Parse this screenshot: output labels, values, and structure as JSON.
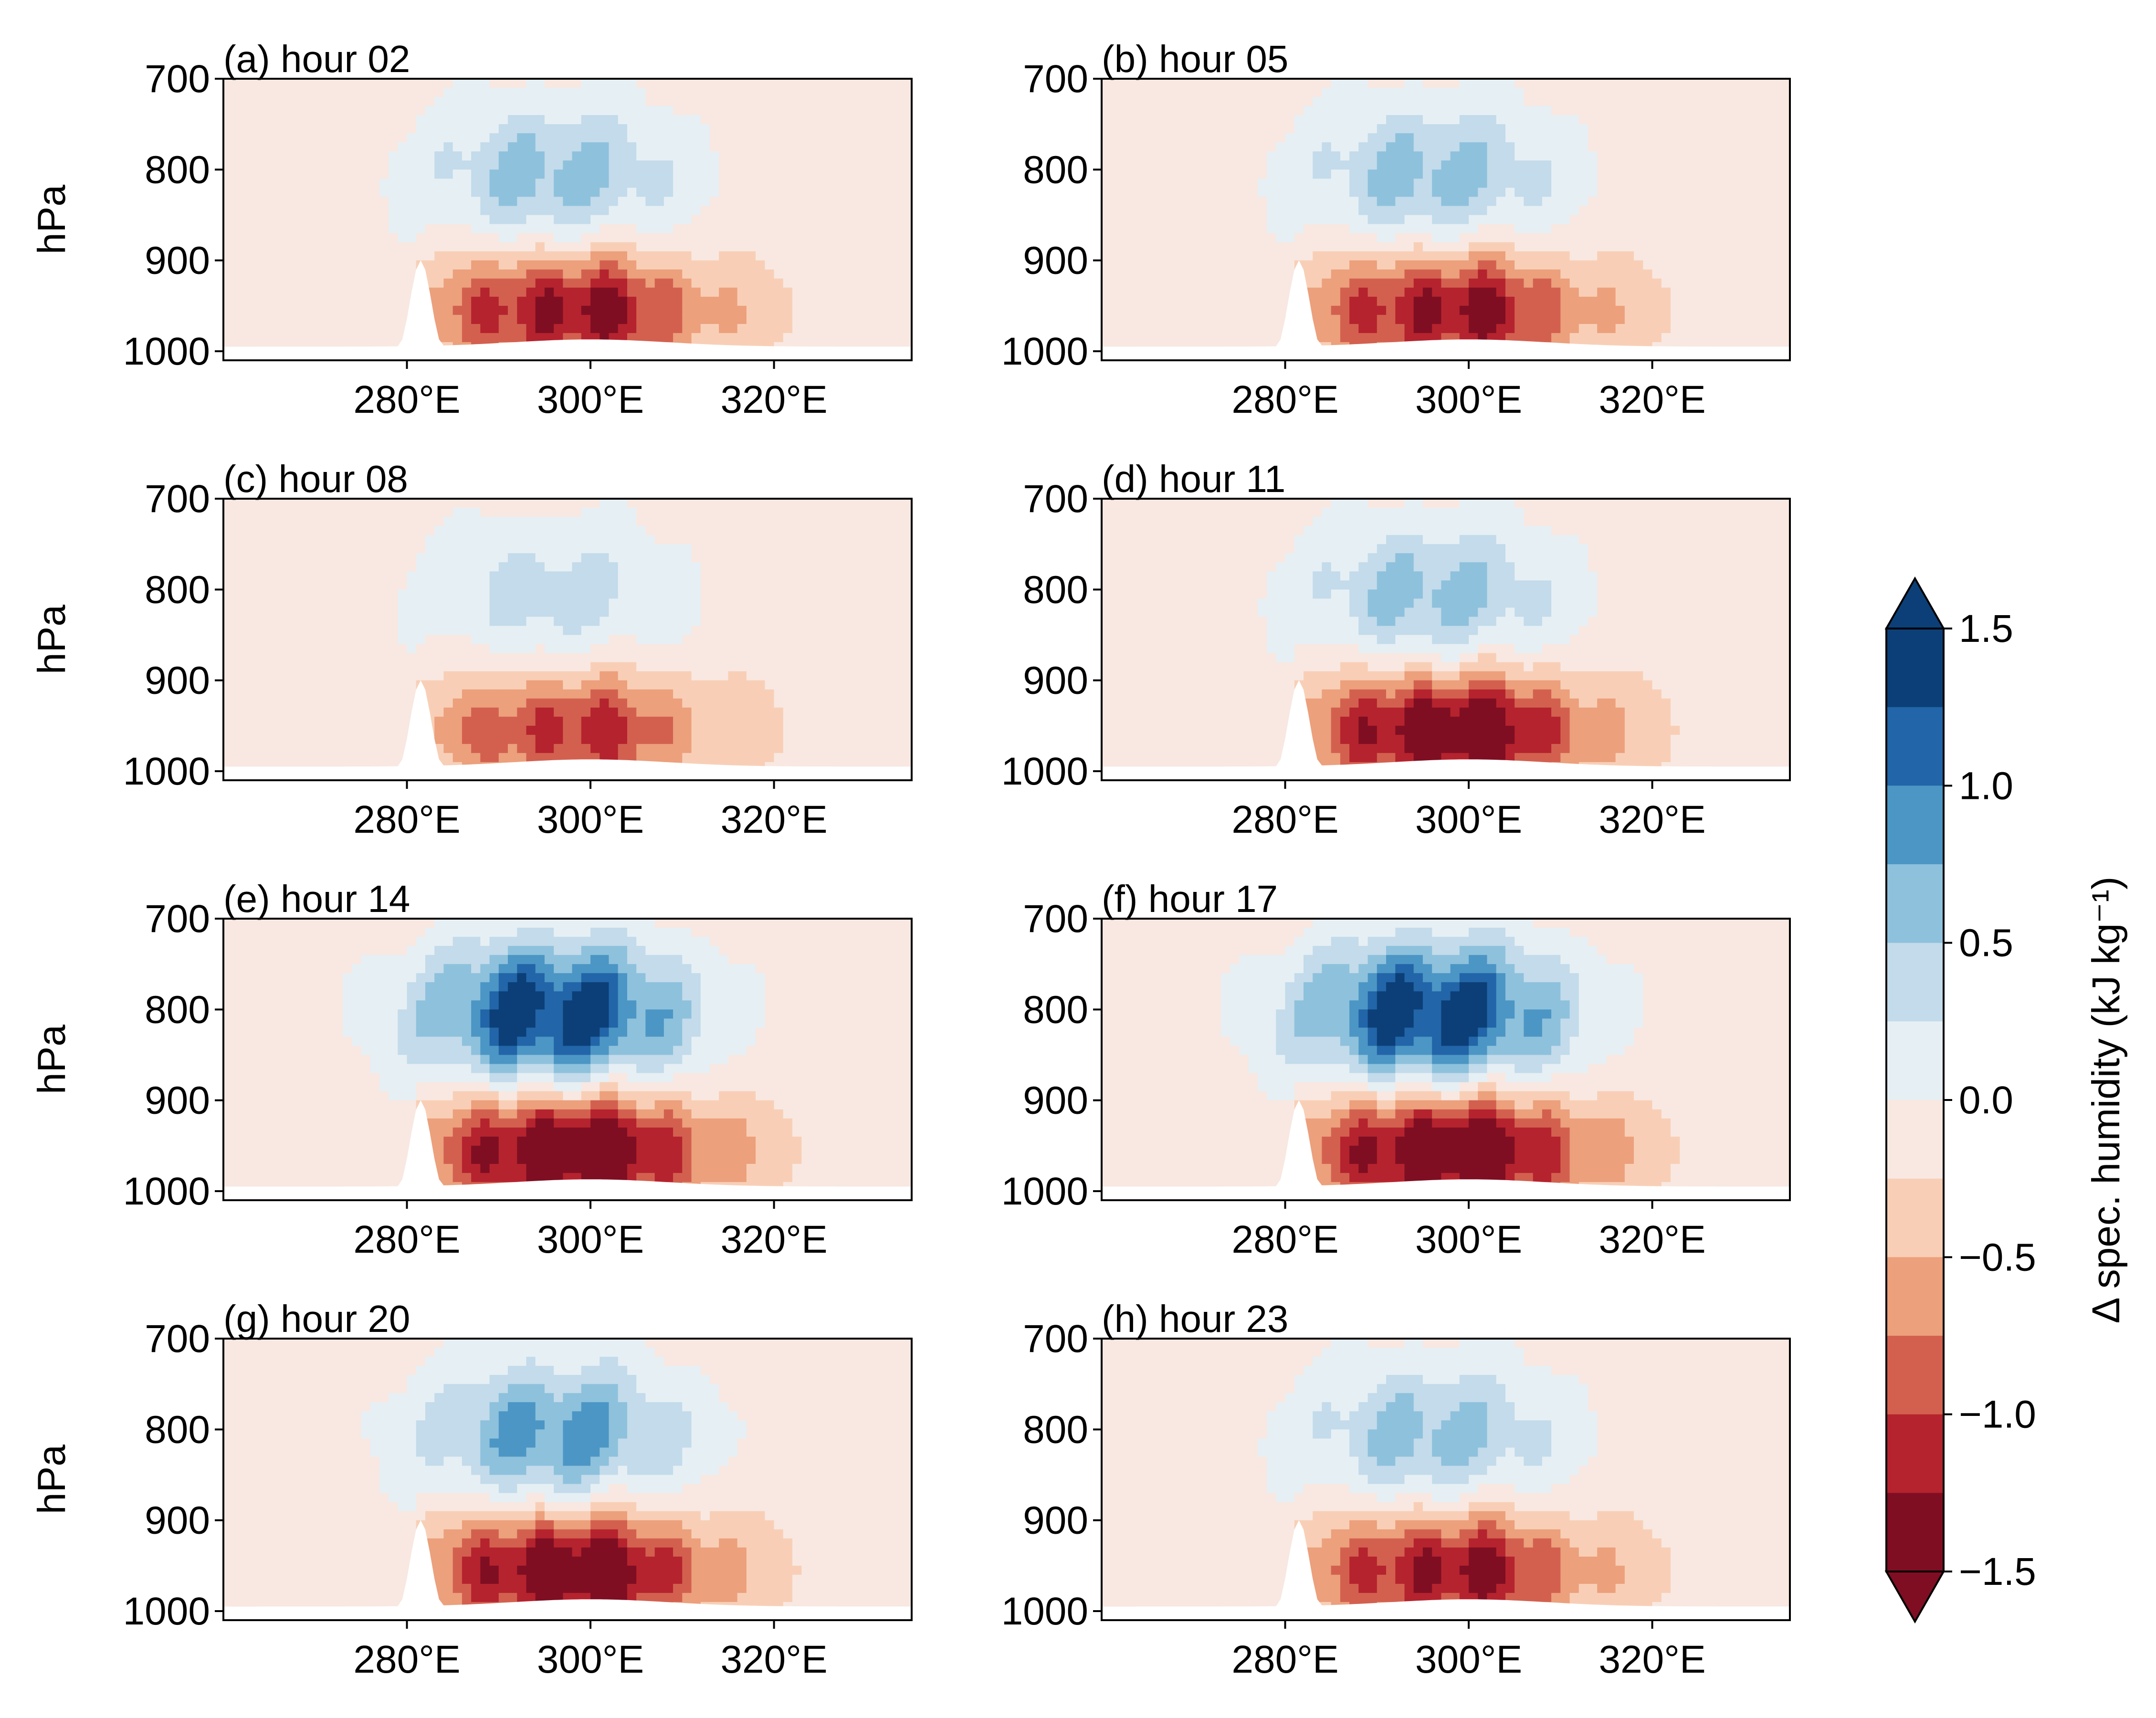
{
  "figure": {
    "type": "contour-panels",
    "colormap": "RdBu diverging (red negative, blue positive)"
  },
  "chart_data": {
    "type": "heatmap",
    "panel_axes": {
      "x_ticks": [
        "280°E",
        "300°E",
        "320°E"
      ],
      "x_tick_values": [
        280,
        300,
        320
      ],
      "xlim": [
        260,
        335
      ],
      "y_ticks": [
        "700",
        "800",
        "900",
        "1000"
      ],
      "y_tick_values": [
        700,
        800,
        900,
        1000
      ],
      "ylim": [
        1010,
        700
      ],
      "ylabel": "hPa"
    },
    "panels": [
      {
        "title": "(a) hour 02",
        "min_value": -1.25,
        "max_value": 0.75
      },
      {
        "title": "(b) hour 05",
        "min_value": -1.25,
        "max_value": 0.75
      },
      {
        "title": "(c) hour 08",
        "min_value": -1.0,
        "max_value": 0.5
      },
      {
        "title": "(d) hour 11",
        "min_value": -1.5,
        "max_value": 0.75
      },
      {
        "title": "(e) hour 14",
        "min_value": -1.6,
        "max_value": 1.6
      },
      {
        "title": "(f) hour 17",
        "min_value": -1.6,
        "max_value": 1.6
      },
      {
        "title": "(g) hour 20",
        "min_value": -1.5,
        "max_value": 1.0
      },
      {
        "title": "(h) hour 23",
        "min_value": -1.25,
        "max_value": 0.75
      }
    ],
    "colorbar": {
      "label": "Δ spec. humidity (kJ kg⁻¹)",
      "ticks": [
        "1.5",
        "1.0",
        "0.5",
        "0.0",
        "−0.5",
        "−1.0",
        "−1.5"
      ],
      "tick_values": [
        1.5,
        1.0,
        0.5,
        0.0,
        -0.5,
        -1.0,
        -1.5
      ],
      "levels": [
        -1.5,
        -1.25,
        -1.0,
        -0.75,
        -0.5,
        -0.25,
        0.0,
        0.25,
        0.5,
        0.75,
        1.0,
        1.25,
        1.5
      ],
      "colors": [
        "#7f0e22",
        "#b5232e",
        "#d3604f",
        "#eca07c",
        "#f8cfb6",
        "#f8e8e1",
        "#e6eff4",
        "#c3dbea",
        "#8ec1dc",
        "#4c96c5",
        "#2265a8",
        "#0c3f77"
      ],
      "extend": "both"
    }
  }
}
